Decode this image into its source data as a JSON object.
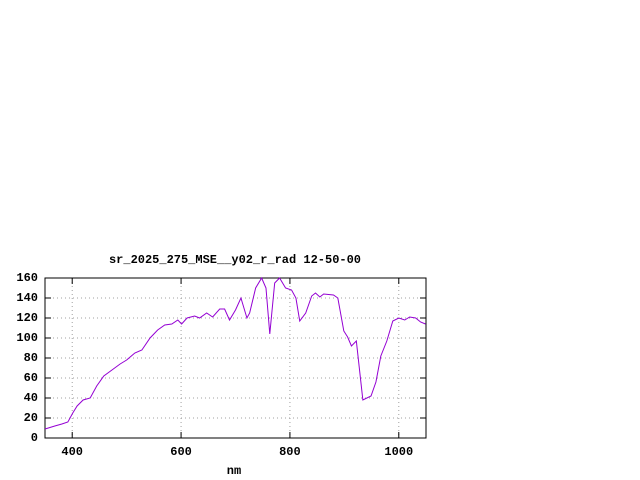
{
  "chart_data": {
    "type": "line",
    "title": "sr_2025_275_MSE__y02_r_rad 12-50-00",
    "x_label": "nm",
    "x": [
      350,
      368,
      381,
      392,
      401,
      409,
      420,
      433,
      445,
      458,
      473,
      488,
      500,
      515,
      528,
      543,
      557,
      570,
      583,
      594,
      601,
      611,
      625,
      634,
      647,
      658,
      671,
      680,
      689,
      700,
      710,
      721,
      726,
      737,
      748,
      756,
      763,
      772,
      781,
      792,
      803,
      811,
      818,
      829,
      840,
      847,
      855,
      862,
      880,
      888,
      899,
      906,
      913,
      922,
      934,
      949,
      958,
      967,
      978,
      989,
      1000,
      1011,
      1020,
      1031,
      1040,
      1049
    ],
    "values": [
      9,
      12,
      14,
      16,
      25,
      32,
      38,
      40,
      52,
      62,
      68,
      74,
      78,
      85,
      88,
      100,
      108,
      113,
      114,
      118,
      114,
      120,
      122,
      120,
      125,
      121,
      129,
      129,
      118,
      128,
      140,
      120,
      125,
      150,
      160,
      150,
      104,
      155,
      160,
      150,
      148,
      140,
      117,
      125,
      142,
      145,
      141,
      144,
      143,
      140,
      107,
      101,
      92,
      97,
      38,
      42,
      56,
      82,
      97,
      117,
      120,
      118,
      121,
      120,
      116,
      114
    ],
    "color": "#9400d3",
    "xlim": [
      350,
      1050
    ],
    "ylim": [
      0,
      160
    ],
    "xticks": [
      400,
      600,
      800,
      1000
    ],
    "yticks": [
      0,
      20,
      40,
      60,
      80,
      100,
      120,
      140,
      160
    ],
    "grid": true
  }
}
